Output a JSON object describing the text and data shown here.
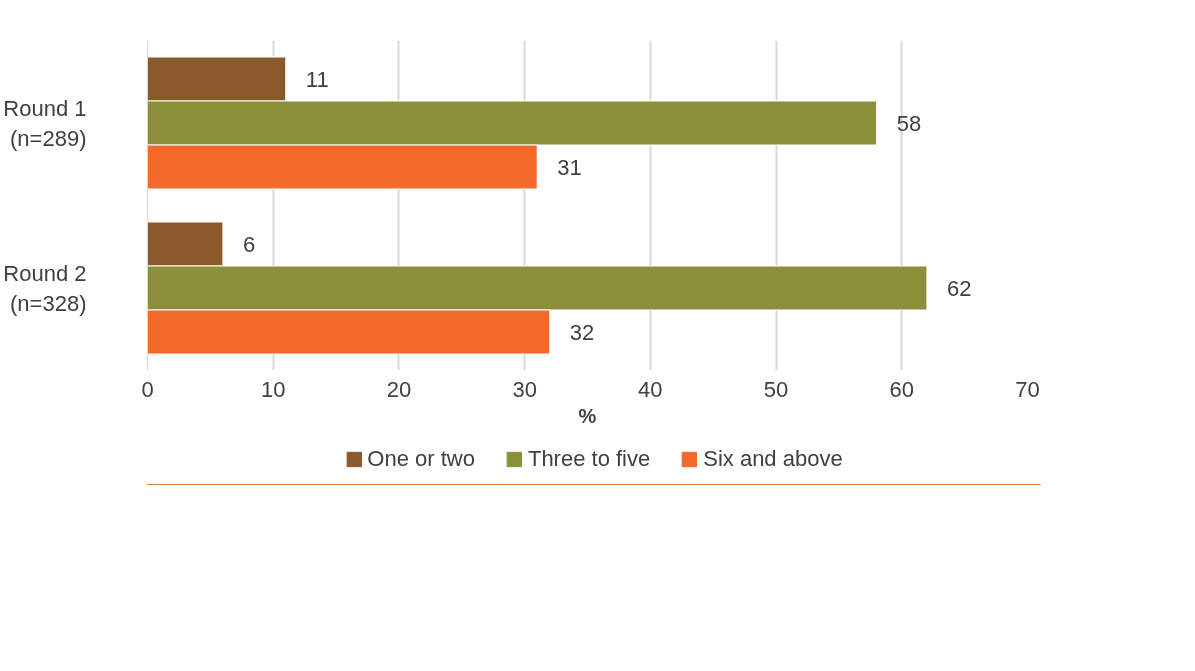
{
  "chart_data": {
    "type": "bar",
    "orientation": "horizontal",
    "xlabel": "%",
    "categories": [
      "Round 1\n(n=289)",
      "Round 2\n(n=328)"
    ],
    "series": [
      {
        "name": "One or two",
        "color": "#8b5a2b",
        "values": [
          11,
          6
        ]
      },
      {
        "name": "Three to five",
        "color": "#8b8f3a",
        "values": [
          58,
          62
        ]
      },
      {
        "name": "Six and above",
        "color": "#f26a2a",
        "values": [
          31,
          32
        ]
      }
    ],
    "xlim": [
      0,
      70
    ],
    "xticks": [
      0,
      10,
      20,
      30,
      40,
      50,
      60,
      70
    ],
    "grid": "x",
    "legend": "bottom",
    "data_labels": true
  }
}
